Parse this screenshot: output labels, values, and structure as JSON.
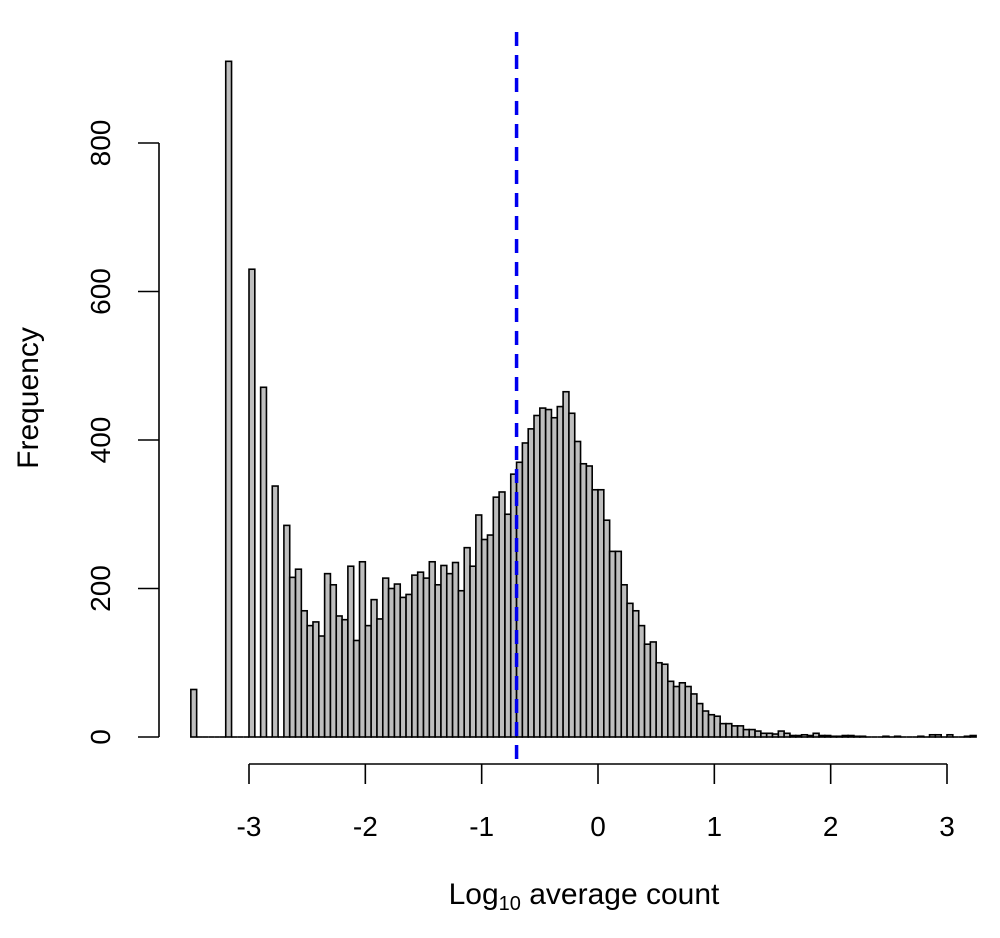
{
  "chart_data": {
    "type": "bar",
    "title": "",
    "xlabel": {
      "base": "Log",
      "sub": "10",
      "rest": " average count"
    },
    "ylabel": "Frequency",
    "xlim": [
      -3.5,
      3.25
    ],
    "ylim": [
      0,
      910
    ],
    "xticks": [
      -3,
      -2,
      -1,
      0,
      1,
      2,
      3
    ],
    "xtick_labels": [
      "-3",
      "-2",
      "-1",
      "0",
      "1",
      "2",
      "3"
    ],
    "yticks": [
      0,
      200,
      400,
      600,
      800
    ],
    "ytick_labels": [
      "0",
      "200",
      "400",
      "600",
      "800"
    ],
    "grid": false,
    "bin_width": 0.05,
    "bins_start": -3.5,
    "counts": [
      64,
      0,
      0,
      0,
      0,
      0,
      910,
      0,
      0,
      0,
      630,
      0,
      471,
      0,
      338,
      0,
      285,
      215,
      226,
      170,
      150,
      155,
      136,
      220,
      205,
      163,
      158,
      230,
      130,
      236,
      150,
      185,
      159,
      214,
      200,
      206,
      188,
      192,
      218,
      222,
      214,
      236,
      205,
      231,
      220,
      235,
      197,
      255,
      230,
      299,
      266,
      272,
      323,
      330,
      300,
      354,
      370,
      396,
      415,
      433,
      443,
      441,
      430,
      445,
      465,
      436,
      398,
      368,
      365,
      333,
      333,
      292,
      250,
      250,
      205,
      180,
      170,
      150,
      125,
      128,
      100,
      98,
      75,
      68,
      73,
      68,
      58,
      45,
      35,
      30,
      28,
      18,
      18,
      15,
      15,
      10,
      10,
      8,
      5,
      5,
      4,
      8,
      5,
      2,
      2,
      3,
      2,
      5,
      2,
      2,
      1,
      1,
      2,
      2,
      1,
      1,
      0,
      0,
      0,
      1,
      0,
      1,
      0,
      0,
      0,
      1,
      0,
      3,
      3,
      0,
      3,
      0,
      0,
      1,
      2
    ],
    "bar_fill": "#bebebe",
    "bar_edge": "#000000",
    "reference_line": {
      "x": -0.7,
      "color": "#0000ee",
      "style": "dashed"
    }
  }
}
